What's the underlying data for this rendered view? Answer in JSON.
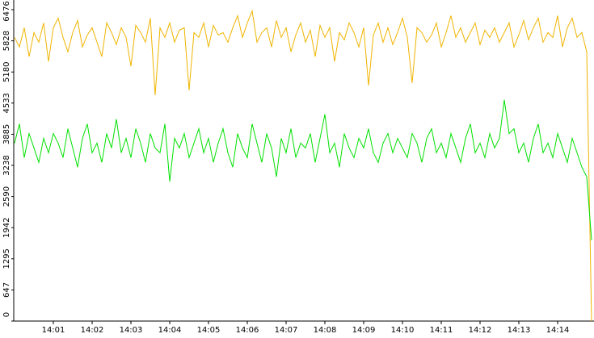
{
  "chart_data": {
    "type": "line",
    "categories": [
      null,
      null,
      null,
      null,
      null,
      null,
      null,
      null,
      "14:01",
      null,
      null,
      null,
      null,
      null,
      null,
      null,
      "14:02",
      null,
      null,
      null,
      null,
      null,
      null,
      null,
      "14:03",
      null,
      null,
      null,
      null,
      null,
      null,
      null,
      "14:04",
      null,
      null,
      null,
      null,
      null,
      null,
      null,
      "14:05",
      null,
      null,
      null,
      null,
      null,
      null,
      null,
      "14:06",
      null,
      null,
      null,
      null,
      null,
      null,
      null,
      "14:07",
      null,
      null,
      null,
      null,
      null,
      null,
      null,
      "14:08",
      null,
      null,
      null,
      null,
      null,
      null,
      null,
      "14:09",
      null,
      null,
      null,
      null,
      null,
      null,
      null,
      "14:10",
      null,
      null,
      null,
      null,
      null,
      null,
      null,
      "14:11",
      null,
      null,
      null,
      null,
      null,
      null,
      null,
      "14:12",
      null,
      null,
      null,
      null,
      null,
      null,
      null,
      "14:13",
      null,
      null,
      null,
      null,
      null,
      null,
      null,
      "14:14",
      null,
      null,
      null,
      null,
      null,
      null,
      null
    ],
    "series": [
      {
        "color": "#f0b400",
        "values": [
          5900,
          5700,
          6100,
          5500,
          6000,
          5800,
          6200,
          5400,
          6100,
          6300,
          5900,
          5600,
          6000,
          6250,
          5700,
          5950,
          6100,
          5800,
          5500,
          6200,
          6000,
          5750,
          6100,
          5900,
          5300,
          6150,
          6000,
          5800,
          6300,
          4700,
          6100,
          5900,
          6200,
          5800,
          6050,
          6100,
          4800,
          6000,
          5900,
          6200,
          5700,
          6150,
          5950,
          6000,
          5800,
          6100,
          6350,
          5900,
          6200,
          6450,
          5800,
          6000,
          6100,
          5700,
          6250,
          5900,
          6100,
          5600,
          5950,
          6200,
          5800,
          6050,
          5500,
          6150,
          5900,
          6100,
          5400,
          6000,
          5850,
          6200,
          6000,
          5700,
          6100,
          4900,
          5950,
          6200,
          5800,
          6100,
          5750,
          6000,
          6300,
          5900,
          4950,
          6100,
          6000,
          5800,
          5950,
          6200,
          5700,
          6000,
          6350,
          5900,
          6100,
          5800,
          6000,
          6200,
          5750,
          6050,
          5900,
          6100,
          5800,
          6000,
          6200,
          5700,
          5950,
          6250,
          5850,
          6100,
          6300,
          5800,
          6000,
          5900,
          6350,
          5700,
          6100,
          6300,
          5900,
          6000,
          5600,
          0
        ]
      },
      {
        "color": "#00e000",
        "values": [
          3700,
          4100,
          3400,
          3900,
          3600,
          3300,
          3800,
          3500,
          3900,
          3700,
          3400,
          4000,
          3600,
          3200,
          3800,
          4100,
          3500,
          3700,
          3300,
          3900,
          3600,
          4200,
          3500,
          3800,
          3400,
          4000,
          3700,
          3300,
          3900,
          3600,
          3500,
          4100,
          2900,
          3800,
          3600,
          3900,
          3400,
          3700,
          4000,
          3500,
          3800,
          3300,
          3700,
          4000,
          3500,
          3200,
          3900,
          3600,
          3400,
          4100,
          3700,
          3300,
          3900,
          3600,
          3000,
          3800,
          3500,
          4000,
          3400,
          3700,
          3600,
          3900,
          3300,
          3800,
          4300,
          3500,
          3700,
          3200,
          3900,
          3600,
          3400,
          3800,
          3600,
          4000,
          3500,
          3300,
          3700,
          3900,
          3500,
          3800,
          3600,
          3400,
          3900,
          3700,
          3300,
          3800,
          4000,
          3500,
          3700,
          3400,
          3900,
          3600,
          3300,
          3800,
          4100,
          3500,
          3700,
          3400,
          3900,
          3600,
          3800,
          4600,
          3900,
          4000,
          3500,
          3700,
          3300,
          3800,
          4100,
          3500,
          3700,
          3400,
          3900,
          3600,
          3300,
          3800,
          3500,
          3200,
          3000,
          1680
        ]
      }
    ],
    "ylim": [
      0,
      6476
    ],
    "yticks": [
      0,
      647,
      1295,
      1942,
      2590,
      3238,
      3885,
      4533,
      5180,
      5828,
      6476
    ]
  }
}
